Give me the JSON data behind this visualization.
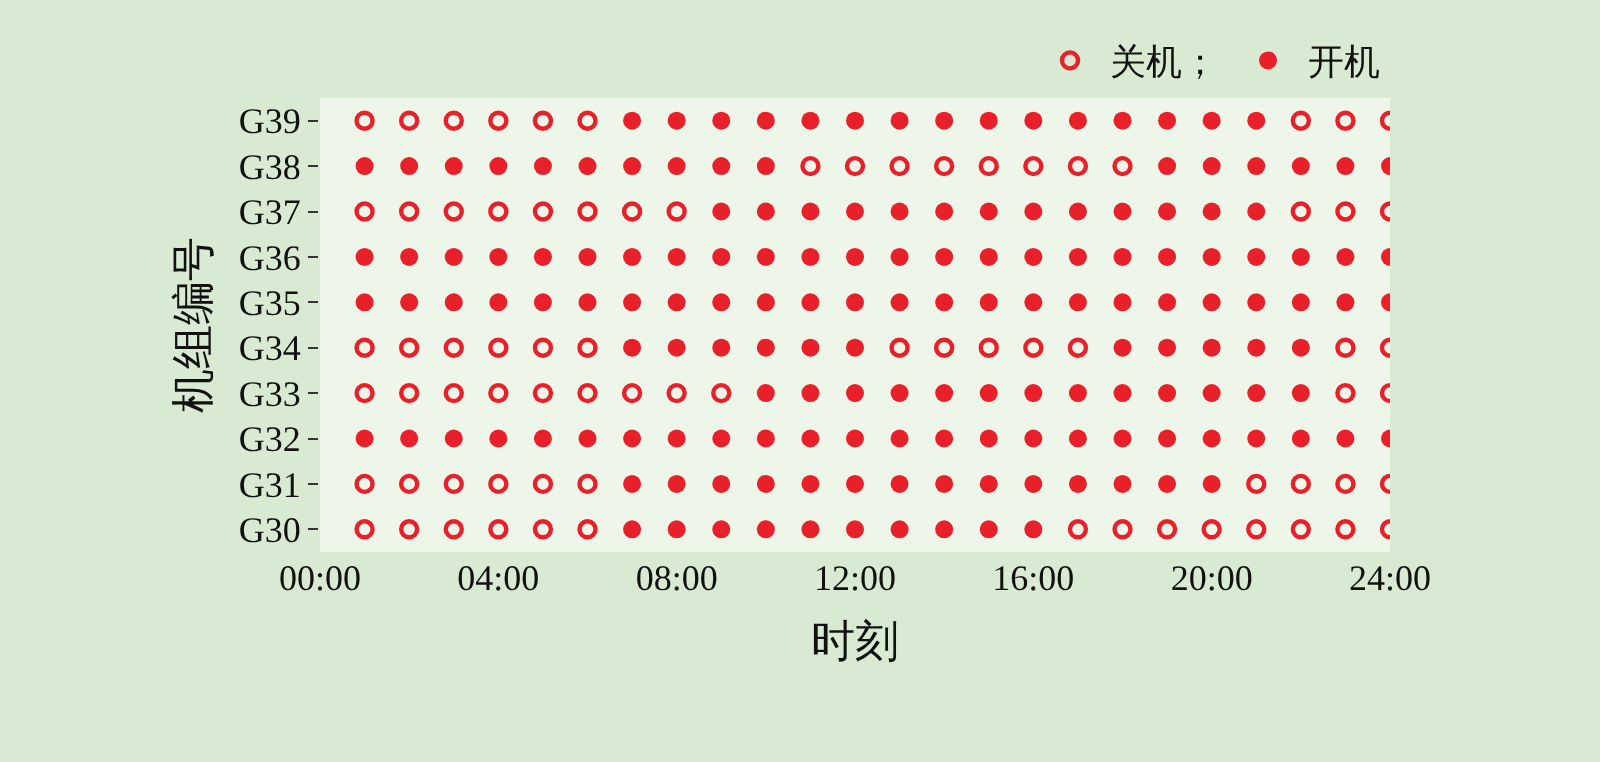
{
  "chart_data": {
    "type": "scatter",
    "orientation": "horizontal",
    "xlabel": "时刻",
    "ylabel": "机组编号",
    "xlim": [
      0,
      24
    ],
    "xticks": [
      {
        "value": 0,
        "label": "00:00"
      },
      {
        "value": 4,
        "label": "04:00"
      },
      {
        "value": 8,
        "label": "08:00"
      },
      {
        "value": 12,
        "label": "12:00"
      },
      {
        "value": 16,
        "label": "16:00"
      },
      {
        "value": 20,
        "label": "20:00"
      },
      {
        "value": 24,
        "label": "24:00"
      }
    ],
    "categories": [
      "G39",
      "G38",
      "G37",
      "G36",
      "G35",
      "G34",
      "G33",
      "G32",
      "G31",
      "G30"
    ],
    "grid": false,
    "legend": "top right",
    "series": [
      {
        "name": "关机；",
        "color": "#e8202a",
        "marker": "circle-open",
        "values": [
          1,
          null,
          1,
          null,
          null,
          1,
          1,
          null,
          1,
          1
        ]
      },
      {
        "color": "#e8202a",
        "marker": "circle-open",
        "values": [
          2,
          null,
          2,
          null,
          null,
          2,
          2,
          null,
          2,
          2
        ]
      },
      {
        "color": "#e8202a",
        "marker": "circle-open",
        "values": [
          3,
          null,
          3,
          null,
          null,
          3,
          3,
          null,
          3,
          3
        ]
      },
      {
        "color": "#e8202a",
        "marker": "circle-open",
        "values": [
          4,
          null,
          4,
          null,
          null,
          4,
          4,
          null,
          4,
          4
        ]
      },
      {
        "color": "#e8202a",
        "marker": "circle-open",
        "values": [
          5,
          null,
          5,
          null,
          null,
          5,
          5,
          null,
          5,
          5
        ]
      },
      {
        "color": "#e8202a",
        "marker": "circle-open",
        "values": [
          6,
          null,
          6,
          null,
          null,
          6,
          6,
          null,
          6,
          6
        ]
      },
      {
        "color": "#e8202a",
        "marker": "circle-open",
        "values": [
          null,
          null,
          7,
          null,
          null,
          null,
          7,
          null,
          null,
          null
        ]
      },
      {
        "color": "#e8202a",
        "marker": "circle-open",
        "values": [
          null,
          null,
          8,
          null,
          null,
          null,
          8,
          null,
          null,
          null
        ]
      },
      {
        "color": "#e8202a",
        "marker": "circle-open",
        "values": [
          null,
          null,
          null,
          null,
          null,
          null,
          9,
          null,
          null,
          null
        ]
      },
      {
        "color": "#e8202a",
        "marker": "circle-open",
        "values": [
          null,
          11,
          null,
          null,
          null,
          null,
          null,
          null,
          null,
          null
        ]
      },
      {
        "color": "#e8202a",
        "marker": "circle-open",
        "values": [
          null,
          12,
          null,
          null,
          null,
          null,
          null,
          null,
          null,
          null
        ]
      },
      {
        "color": "#e8202a",
        "marker": "circle-open",
        "values": [
          null,
          13,
          null,
          null,
          null,
          13,
          null,
          null,
          null,
          null
        ]
      },
      {
        "color": "#e8202a",
        "marker": "circle-open",
        "values": [
          null,
          14,
          null,
          null,
          null,
          14,
          null,
          null,
          null,
          null
        ]
      },
      {
        "color": "#e8202a",
        "marker": "circle-open",
        "values": [
          null,
          15,
          null,
          null,
          null,
          15,
          null,
          null,
          null,
          null
        ]
      },
      {
        "color": "#e8202a",
        "marker": "circle-open",
        "values": [
          null,
          16,
          null,
          null,
          null,
          16,
          null,
          null,
          null,
          null
        ]
      },
      {
        "color": "#e8202a",
        "marker": "circle-open",
        "values": [
          null,
          17,
          null,
          null,
          null,
          17,
          null,
          null,
          null,
          17
        ]
      },
      {
        "color": "#e8202a",
        "marker": "circle-open",
        "values": [
          null,
          18,
          null,
          null,
          null,
          null,
          null,
          null,
          null,
          18
        ]
      },
      {
        "color": "#e8202a",
        "marker": "circle-open",
        "values": [
          null,
          null,
          null,
          null,
          null,
          null,
          null,
          null,
          null,
          19
        ]
      },
      {
        "color": "#e8202a",
        "marker": "circle-open",
        "values": [
          null,
          null,
          null,
          null,
          null,
          null,
          null,
          null,
          null,
          20
        ]
      },
      {
        "color": "#e8202a",
        "marker": "circle-open",
        "values": [
          null,
          null,
          null,
          null,
          null,
          null,
          null,
          null,
          21,
          21
        ]
      },
      {
        "color": "#e8202a",
        "marker": "circle-open",
        "values": [
          22,
          null,
          22,
          null,
          null,
          null,
          null,
          null,
          22,
          22
        ]
      },
      {
        "color": "#e8202a",
        "marker": "circle-open",
        "values": [
          23,
          null,
          23,
          null,
          null,
          23,
          23,
          null,
          23,
          23
        ]
      },
      {
        "color": "#e8202a",
        "marker": "circle-open",
        "values": [
          24,
          null,
          24,
          null,
          null,
          24,
          24,
          null,
          24,
          24
        ]
      },
      {
        "name": "开机",
        "color": "#e8202a",
        "marker": "circle",
        "values": [
          null,
          1,
          null,
          1,
          1,
          null,
          null,
          1,
          null,
          null
        ]
      },
      {
        "color": "#e8202a",
        "marker": "circle",
        "values": [
          null,
          2,
          null,
          2,
          2,
          null,
          null,
          2,
          null,
          null
        ]
      },
      {
        "color": "#e8202a",
        "marker": "circle",
        "values": [
          null,
          3,
          null,
          3,
          3,
          null,
          null,
          3,
          null,
          null
        ]
      },
      {
        "color": "#e8202a",
        "marker": "circle",
        "values": [
          null,
          4,
          null,
          4,
          4,
          null,
          null,
          4,
          null,
          null
        ]
      },
      {
        "color": "#e8202a",
        "marker": "circle",
        "values": [
          null,
          5,
          null,
          5,
          5,
          null,
          null,
          5,
          null,
          null
        ]
      },
      {
        "color": "#e8202a",
        "marker": "circle",
        "values": [
          null,
          6,
          null,
          6,
          6,
          null,
          null,
          6,
          null,
          null
        ]
      },
      {
        "color": "#e8202a",
        "marker": "circle",
        "values": [
          7,
          7,
          null,
          7,
          7,
          7,
          null,
          7,
          7,
          7
        ]
      },
      {
        "color": "#e8202a",
        "marker": "circle",
        "values": [
          8,
          8,
          null,
          8,
          8,
          8,
          null,
          8,
          8,
          8
        ]
      },
      {
        "color": "#e8202a",
        "marker": "circle",
        "values": [
          9,
          9,
          9,
          9,
          9,
          9,
          null,
          9,
          9,
          9
        ]
      },
      {
        "color": "#e8202a",
        "marker": "circle",
        "values": [
          10,
          10,
          10,
          10,
          10,
          10,
          10,
          10,
          10,
          10
        ]
      },
      {
        "color": "#e8202a",
        "marker": "circle",
        "values": [
          11,
          null,
          11,
          11,
          11,
          11,
          11,
          11,
          11,
          11
        ]
      },
      {
        "color": "#e8202a",
        "marker": "circle",
        "values": [
          12,
          null,
          12,
          12,
          12,
          12,
          12,
          12,
          12,
          12
        ]
      },
      {
        "color": "#e8202a",
        "marker": "circle",
        "values": [
          13,
          null,
          13,
          13,
          13,
          null,
          13,
          13,
          13,
          13
        ]
      },
      {
        "color": "#e8202a",
        "marker": "circle",
        "values": [
          14,
          null,
          14,
          14,
          14,
          null,
          14,
          14,
          14,
          14
        ]
      },
      {
        "color": "#e8202a",
        "marker": "circle",
        "values": [
          15,
          null,
          15,
          15,
          15,
          null,
          15,
          15,
          15,
          15
        ]
      },
      {
        "color": "#e8202a",
        "marker": "circle",
        "values": [
          16,
          null,
          16,
          16,
          16,
          null,
          16,
          16,
          16,
          16
        ]
      },
      {
        "color": "#e8202a",
        "marker": "circle",
        "values": [
          17,
          null,
          17,
          17,
          17,
          null,
          17,
          17,
          17,
          null
        ]
      },
      {
        "color": "#e8202a",
        "marker": "circle",
        "values": [
          18,
          null,
          18,
          18,
          18,
          18,
          18,
          18,
          18,
          null
        ]
      },
      {
        "color": "#e8202a",
        "marker": "circle",
        "values": [
          19,
          19,
          19,
          19,
          19,
          19,
          19,
          19,
          19,
          null
        ]
      },
      {
        "color": "#e8202a",
        "marker": "circle",
        "values": [
          20,
          20,
          20,
          20,
          20,
          20,
          20,
          20,
          20,
          null
        ]
      },
      {
        "color": "#e8202a",
        "marker": "circle",
        "values": [
          21,
          21,
          21,
          21,
          21,
          21,
          21,
          21,
          null,
          null
        ]
      },
      {
        "color": "#e8202a",
        "marker": "circle",
        "values": [
          null,
          22,
          null,
          22,
          22,
          22,
          22,
          22,
          null,
          null
        ]
      },
      {
        "color": "#e8202a",
        "marker": "circle",
        "values": [
          null,
          23,
          null,
          23,
          23,
          null,
          null,
          23,
          null,
          null
        ]
      },
      {
        "color": "#e8202a",
        "marker": "circle",
        "values": [
          null,
          24,
          null,
          24,
          24,
          null,
          null,
          24,
          null,
          null
        ]
      }
    ]
  }
}
